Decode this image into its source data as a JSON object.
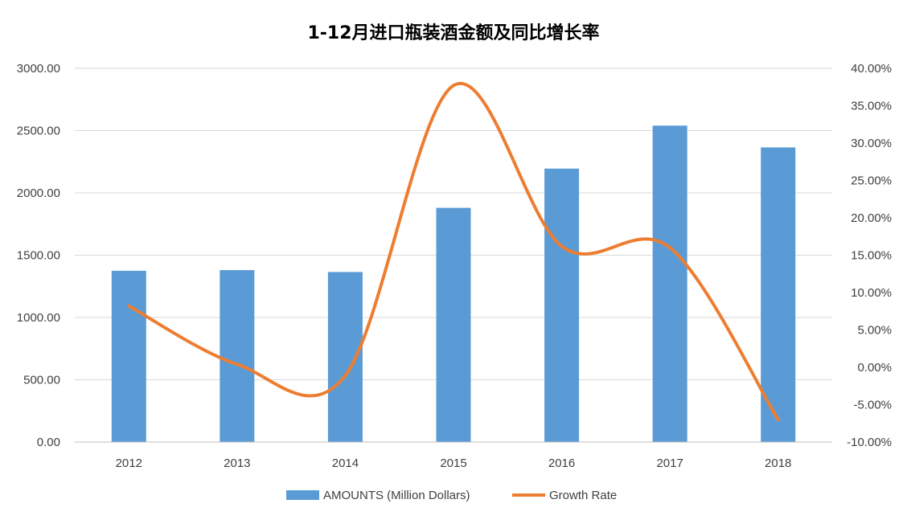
{
  "chart_data": {
    "type": "bar",
    "title": "1-12月进口瓶装酒金额及同比增长率",
    "categories": [
      "2012",
      "2013",
      "2014",
      "2015",
      "2016",
      "2017",
      "2018"
    ],
    "series": [
      {
        "name": "AMOUNTS (Million Dollars)",
        "type": "bar",
        "axis": "left",
        "color": "#5b9bd5",
        "values": [
          1375,
          1380,
          1365,
          1880,
          2195,
          2540,
          2365
        ]
      },
      {
        "name": "Growth Rate",
        "type": "line",
        "smooth": true,
        "axis": "right",
        "color": "#ed7d31",
        "values": [
          8.2,
          0.4,
          -1.1,
          37.7,
          16.2,
          16.0,
          -7.0
        ]
      }
    ],
    "y_left": {
      "ylim": [
        0,
        3000
      ],
      "ticks": [
        "0.00",
        "500.00",
        "1000.00",
        "1500.00",
        "2000.00",
        "2500.00",
        "3000.00"
      ]
    },
    "y_right": {
      "ylim": [
        -10,
        40
      ],
      "ticks": [
        "-10.00%",
        "-5.00%",
        "0.00%",
        "5.00%",
        "10.00%",
        "15.00%",
        "20.00%",
        "25.00%",
        "30.00%",
        "35.00%",
        "40.00%"
      ]
    },
    "grid": true,
    "legend_position": "bottom"
  }
}
